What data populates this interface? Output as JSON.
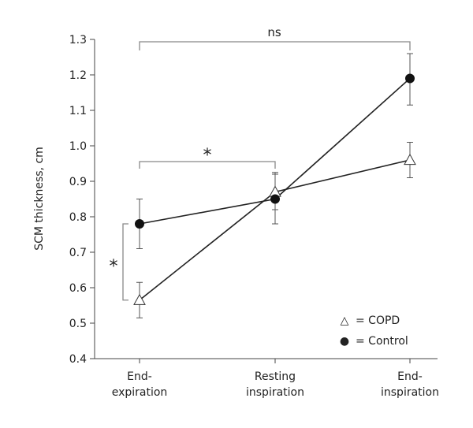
{
  "chart_data": {
    "type": "line",
    "title": "",
    "xlabel": "",
    "ylabel": "SCM thickness, cm",
    "ylim": [
      0.4,
      1.3
    ],
    "yticks": [
      "0.4",
      "0.5",
      "0.6",
      "0.7",
      "0.8",
      "0.9",
      "1.0",
      "1.1",
      "1.2",
      "1.3"
    ],
    "categories": [
      {
        "line1": "End-",
        "line2": "expiration"
      },
      {
        "line1": "Resting",
        "line2": "inspiration"
      },
      {
        "line1": "End-",
        "line2": "inspiration"
      }
    ],
    "grid": false,
    "legend_position": "bottom-right",
    "legend": {
      "copd": {
        "symbol": "△",
        "text": "= COPD"
      },
      "control": {
        "symbol": "●",
        "text": "= Control"
      }
    },
    "series": [
      {
        "name": "COPD",
        "marker": "open-triangle",
        "values": [
          0.565,
          0.87,
          0.96
        ],
        "error_low": [
          0.515,
          0.82,
          0.91
        ],
        "error_high": [
          0.615,
          0.925,
          1.01
        ]
      },
      {
        "name": "Control",
        "marker": "filled-circle",
        "values": [
          0.78,
          0.85,
          1.19
        ],
        "error_low": [
          0.71,
          0.78,
          1.115
        ],
        "error_high": [
          0.85,
          0.92,
          1.26
        ]
      }
    ],
    "annotations": {
      "ns_label": "ns",
      "star_top": "*",
      "star_left": "*"
    },
    "colors": {
      "line": "#222222",
      "triangle_fill": "#ffffff",
      "circle_fill": "#111111",
      "bracket": "#888888",
      "error_bar": "#555555"
    }
  }
}
